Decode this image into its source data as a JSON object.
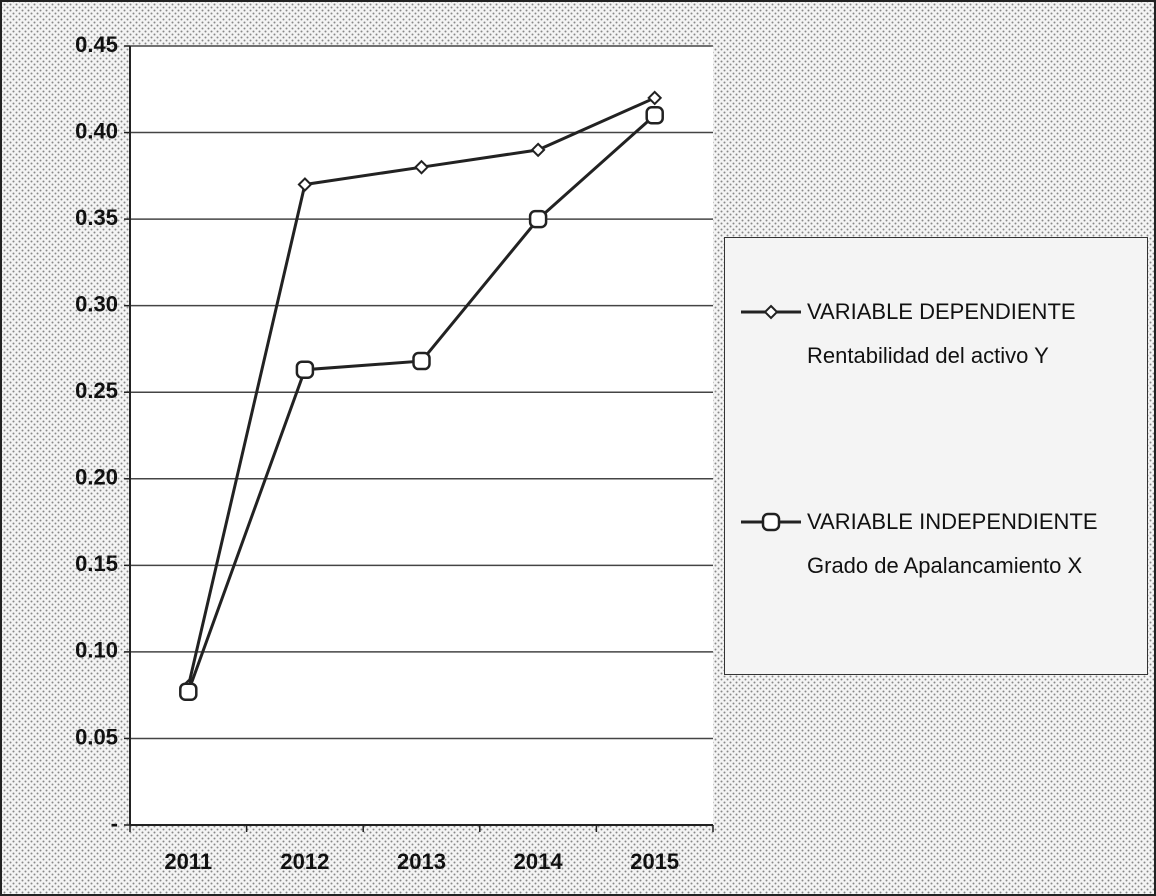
{
  "chart_data": {
    "type": "line",
    "categories": [
      "2011",
      "2012",
      "2013",
      "2014",
      "2015"
    ],
    "series": [
      {
        "name": "VARIABLE DEPENDIENTE Rentabilidad del activo Y",
        "color": "#222222",
        "marker": "diamond",
        "values": [
          0.08,
          0.37,
          0.38,
          0.39,
          0.42
        ]
      },
      {
        "name": "VARIABLE INDEPENDIENTE Grado de Apalancamiento X",
        "color": "#222222",
        "marker": "circle",
        "values": [
          0.077,
          0.263,
          0.268,
          0.35,
          0.41
        ]
      }
    ],
    "ylim": [
      0,
      0.45
    ],
    "yticks": [
      {
        "value": 0,
        "label": "-"
      },
      0.05,
      {
        "value": 0.1,
        "label": "0.10"
      },
      0.15,
      {
        "value": 0.2,
        "label": "0.20"
      },
      0.25,
      {
        "value": 0.3,
        "label": "0.30"
      },
      0.35,
      {
        "value": 0.4,
        "label": "0.40"
      },
      0.45
    ],
    "grid": true
  }
}
